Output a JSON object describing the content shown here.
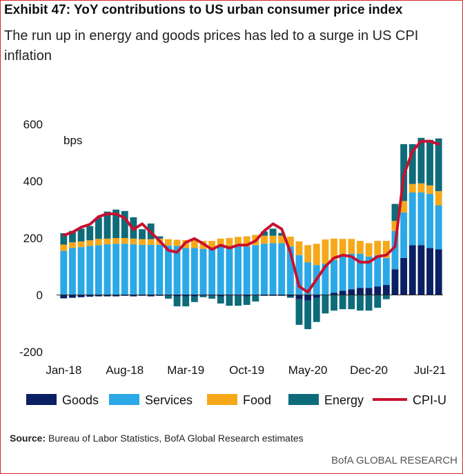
{
  "header": {
    "title": "Exhibit 47: YoY contributions to US urban consumer price index",
    "subtitle": "The run up in energy and goods prices has led to a surge in US CPI inflation"
  },
  "footer": {
    "source_label": "Source:",
    "source_text": "Bureau of Labor Statistics, BofA Global Research estimates",
    "brand": "BofA GLOBAL RESEARCH"
  },
  "colors": {
    "goods": "#0b1f63",
    "services": "#2ba8e6",
    "food": "#f5a91a",
    "energy": "#0e6b7a",
    "cpi": "#c8102e"
  },
  "chart_data": {
    "type": "bar",
    "stacked": true,
    "unit_label": "bps",
    "ylim": [
      -200,
      600
    ],
    "yticks": [
      -200,
      0,
      200,
      400,
      600
    ],
    "xtick_labels": [
      "Jan-18",
      "Aug-18",
      "Mar-19",
      "Oct-19",
      "May-20",
      "Dec-20",
      "Jul-21"
    ],
    "xtick_indices": [
      0,
      7,
      14,
      21,
      28,
      35,
      42
    ],
    "categories": [
      "Jan-18",
      "Feb-18",
      "Mar-18",
      "Apr-18",
      "May-18",
      "Jun-18",
      "Jul-18",
      "Aug-18",
      "Sep-18",
      "Oct-18",
      "Nov-18",
      "Dec-18",
      "Jan-19",
      "Feb-19",
      "Mar-19",
      "Apr-19",
      "May-19",
      "Jun-19",
      "Jul-19",
      "Aug-19",
      "Sep-19",
      "Oct-19",
      "Nov-19",
      "Dec-19",
      "Jan-20",
      "Feb-20",
      "Mar-20",
      "Apr-20",
      "May-20",
      "Jun-20",
      "Jul-20",
      "Aug-20",
      "Sep-20",
      "Oct-20",
      "Nov-20",
      "Dec-20",
      "Jan-21",
      "Feb-21",
      "Mar-21",
      "Apr-21",
      "May-21",
      "Jun-21",
      "Jul-21",
      "Aug-21"
    ],
    "series": [
      {
        "name": "Goods",
        "key": "goods",
        "values": [
          -12,
          -10,
          -8,
          -6,
          -5,
          -5,
          -5,
          -3,
          -5,
          -3,
          -5,
          -3,
          -3,
          -5,
          -5,
          -5,
          -3,
          -3,
          -5,
          -3,
          -3,
          -5,
          -3,
          -3,
          -3,
          -3,
          -5,
          -15,
          -20,
          -10,
          0,
          8,
          15,
          20,
          25,
          25,
          30,
          35,
          90,
          130,
          175,
          175,
          165,
          160
        ]
      },
      {
        "name": "Services",
        "key": "services",
        "values": [
          155,
          165,
          168,
          172,
          175,
          178,
          180,
          180,
          178,
          176,
          176,
          176,
          174,
          172,
          165,
          165,
          162,
          162,
          170,
          172,
          172,
          170,
          175,
          180,
          182,
          182,
          170,
          140,
          115,
          105,
          110,
          115,
          120,
          125,
          120,
          110,
          110,
          95,
          135,
          160,
          185,
          185,
          190,
          155
        ]
      },
      {
        "name": "Food",
        "key": "food",
        "values": [
          22,
          20,
          20,
          20,
          22,
          20,
          20,
          20,
          20,
          20,
          20,
          22,
          22,
          22,
          28,
          28,
          28,
          28,
          28,
          28,
          32,
          36,
          36,
          28,
          26,
          26,
          35,
          48,
          60,
          75,
          85,
          75,
          62,
          52,
          45,
          47,
          50,
          60,
          35,
          40,
          30,
          32,
          30,
          50
        ]
      },
      {
        "name": "Energy",
        "key": "energy",
        "values": [
          40,
          40,
          45,
          50,
          75,
          95,
          100,
          95,
          75,
          35,
          55,
          8,
          -10,
          -35,
          -35,
          -20,
          -5,
          -10,
          -25,
          -35,
          -35,
          -30,
          -20,
          15,
          25,
          10,
          -5,
          -90,
          -100,
          -85,
          -65,
          -55,
          -50,
          -50,
          -55,
          -55,
          -45,
          -15,
          60,
          200,
          140,
          160,
          160,
          185
        ]
      }
    ],
    "line": {
      "name": "CPI-U",
      "key": "cpi",
      "values": [
        210,
        220,
        238,
        248,
        275,
        285,
        285,
        270,
        230,
        250,
        220,
        190,
        157,
        150,
        185,
        198,
        180,
        160,
        175,
        165,
        175,
        175,
        190,
        225,
        250,
        232,
        150,
        30,
        10,
        55,
        100,
        130,
        140,
        135,
        115,
        115,
        135,
        140,
        170,
        420,
        505,
        540,
        540,
        530
      ]
    },
    "legend": {
      "placement": "bottom",
      "entries": [
        "Goods",
        "Services",
        "Food",
        "Energy",
        "CPI-U"
      ]
    },
    "grid": false
  }
}
